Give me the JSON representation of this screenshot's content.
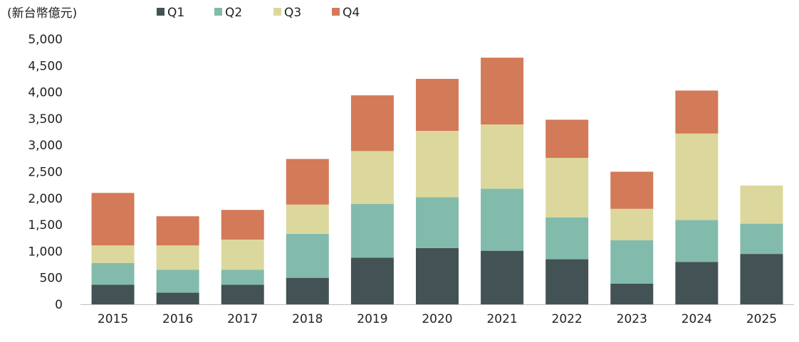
{
  "chart_data": {
    "type": "bar",
    "stacked": true,
    "unit_label": "(新台幣億元)",
    "categories": [
      "2015",
      "2016",
      "2017",
      "2018",
      "2019",
      "2020",
      "2021",
      "2022",
      "2023",
      "2024",
      "2025"
    ],
    "series": [
      {
        "name": "Q1",
        "color": "#435254",
        "values": [
          370,
          220,
          370,
          500,
          880,
          1060,
          1010,
          850,
          390,
          800,
          950
        ]
      },
      {
        "name": "Q2",
        "color": "#82bbab",
        "values": [
          410,
          430,
          280,
          830,
          1010,
          960,
          1170,
          790,
          820,
          790,
          570
        ]
      },
      {
        "name": "Q3",
        "color": "#dcd89d",
        "values": [
          330,
          460,
          570,
          550,
          1000,
          1250,
          1210,
          1120,
          590,
          1630,
          720
        ]
      },
      {
        "name": "Q4",
        "color": "#d37a58",
        "values": [
          990,
          550,
          560,
          860,
          1050,
          980,
          1260,
          720,
          700,
          810,
          0
        ]
      }
    ],
    "y_ticks": [
      "0",
      "500",
      "1,000",
      "1,500",
      "2,000",
      "2,500",
      "3,000",
      "3,500",
      "4,000",
      "4,500",
      "5,000"
    ],
    "ylim": [
      0,
      5000
    ],
    "grid": false,
    "legend_position": "top",
    "title": "",
    "xlabel": "",
    "ylabel": ""
  }
}
